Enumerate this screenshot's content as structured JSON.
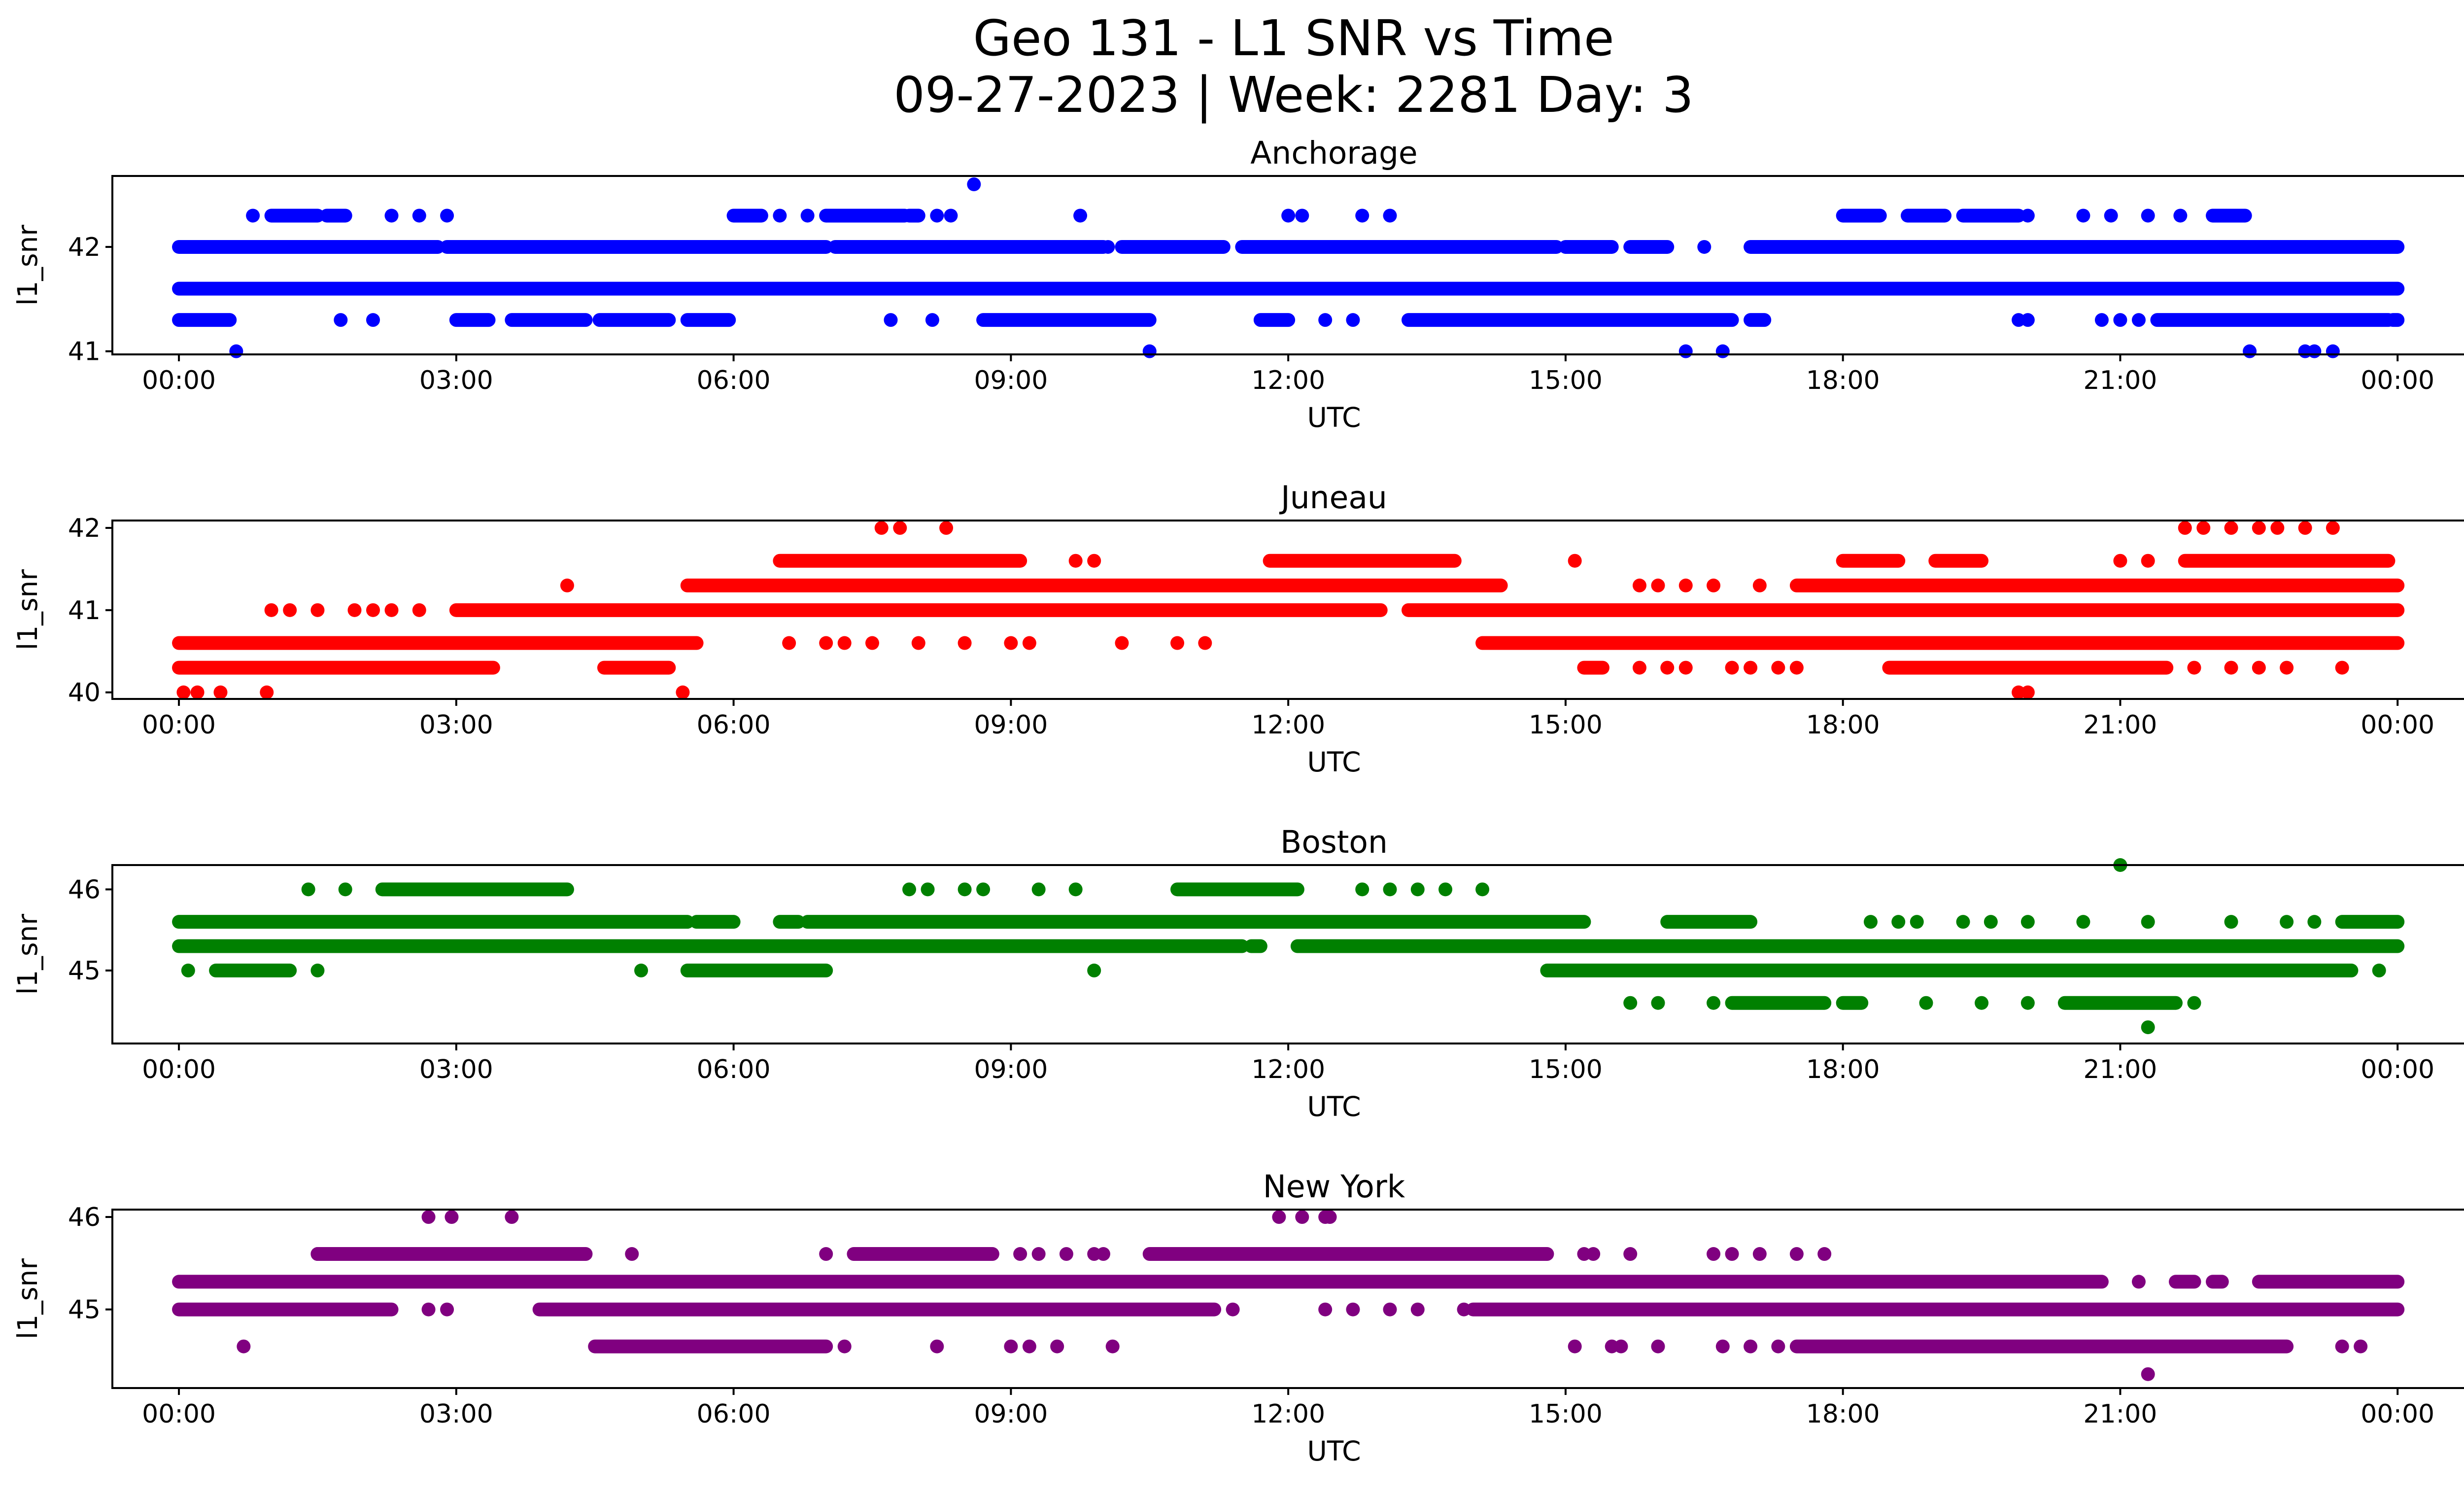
{
  "title": {
    "line1": "Geo 131 - L1 SNR vs Time",
    "line2": "09-27-2023 | Week: 2281 Day: 3"
  },
  "chart_data": [
    {
      "type": "scatter",
      "title": "Anchorage",
      "xlabel": "UTC",
      "ylabel": "l1_snr",
      "color": "#0000ff",
      "xlim": [
        -0.72,
        25.71
      ],
      "ylim": [
        40.97,
        42.68
      ],
      "xticks": [
        "00:00",
        "03:00",
        "06:00",
        "09:00",
        "12:00",
        "15:00",
        "18:00",
        "21:00",
        "00:00"
      ],
      "yticks": [
        41,
        42
      ],
      "bands": [
        {
          "y": 41.6,
          "ranges": [
            [
              0.0,
              24.0
            ]
          ]
        },
        {
          "y": 42.0,
          "ranges": [
            [
              0.0,
              2.8
            ],
            [
              2.9,
              7.0
            ],
            [
              7.1,
              10.0
            ],
            [
              10.2,
              11.3
            ],
            [
              11.5,
              14.9
            ],
            [
              15.0,
              15.5
            ],
            [
              15.7,
              16.1
            ],
            [
              17.0,
              24.0
            ]
          ]
        },
        {
          "y": 41.3,
          "ranges": [
            [
              0.0,
              0.55
            ],
            [
              3.0,
              3.35
            ],
            [
              3.6,
              4.4
            ],
            [
              4.55,
              5.3
            ],
            [
              5.5,
              5.95
            ],
            [
              8.7,
              10.5
            ],
            [
              11.7,
              12.0
            ],
            [
              13.3,
              16.8
            ],
            [
              17.0,
              17.15
            ],
            [
              21.4,
              23.9
            ],
            [
              23.95,
              24.0
            ]
          ]
        },
        {
          "y": 42.3,
          "ranges": [
            [
              1.0,
              1.5
            ],
            [
              1.6,
              1.8
            ],
            [
              6.0,
              6.3
            ],
            [
              7.0,
              7.85
            ],
            [
              7.9,
              8.0
            ],
            [
              18.0,
              18.4
            ],
            [
              18.7,
              19.1
            ],
            [
              19.3,
              19.9
            ],
            [
              22.0,
              22.35
            ]
          ]
        }
      ],
      "points": [
        [
          0.62,
          41.0
        ],
        [
          10.5,
          41.0
        ],
        [
          16.3,
          41.0
        ],
        [
          16.7,
          41.0
        ],
        [
          22.4,
          41.0
        ],
        [
          23.0,
          41.0
        ],
        [
          23.1,
          41.0
        ],
        [
          23.3,
          41.0
        ],
        [
          8.6,
          42.6
        ],
        [
          0.8,
          42.3
        ],
        [
          2.3,
          42.3
        ],
        [
          2.6,
          42.3
        ],
        [
          2.9,
          42.3
        ],
        [
          6.5,
          42.3
        ],
        [
          6.8,
          42.3
        ],
        [
          8.2,
          42.3
        ],
        [
          8.35,
          42.3
        ],
        [
          9.75,
          42.3
        ],
        [
          12.0,
          42.3
        ],
        [
          12.15,
          42.3
        ],
        [
          12.8,
          42.3
        ],
        [
          13.1,
          42.3
        ],
        [
          20.0,
          42.3
        ],
        [
          20.6,
          42.3
        ],
        [
          20.9,
          42.3
        ],
        [
          21.3,
          42.3
        ],
        [
          21.65,
          42.3
        ],
        [
          16.0,
          42.0
        ],
        [
          16.5,
          42.0
        ],
        [
          10.05,
          42.0
        ],
        [
          1.75,
          41.3
        ],
        [
          2.1,
          41.3
        ],
        [
          7.7,
          41.3
        ],
        [
          8.15,
          41.3
        ],
        [
          12.4,
          41.3
        ],
        [
          12.7,
          41.3
        ],
        [
          19.9,
          41.3
        ],
        [
          20.0,
          41.3
        ],
        [
          20.8,
          41.3
        ],
        [
          21.0,
          41.3
        ],
        [
          21.2,
          41.3
        ]
      ]
    },
    {
      "type": "scatter",
      "title": "Juneau",
      "xlabel": "UTC",
      "ylabel": "l1_snr",
      "color": "#ff0000",
      "xlim": [
        -0.72,
        25.71
      ],
      "ylim": [
        39.92,
        42.09
      ],
      "xticks": [
        "00:00",
        "03:00",
        "06:00",
        "09:00",
        "12:00",
        "15:00",
        "18:00",
        "21:00",
        "00:00"
      ],
      "yticks": [
        40,
        41,
        42
      ],
      "bands": [
        {
          "y": 41.0,
          "ranges": [
            [
              3.0,
              13.0
            ],
            [
              13.3,
              24.0
            ]
          ]
        },
        {
          "y": 40.6,
          "ranges": [
            [
              0.0,
              5.6
            ],
            [
              14.1,
              24.0
            ]
          ]
        },
        {
          "y": 40.3,
          "ranges": [
            [
              0.0,
              3.4
            ],
            [
              4.6,
              5.3
            ],
            [
              15.2,
              15.4
            ],
            [
              18.5,
              21.5
            ]
          ]
        },
        {
          "y": 41.3,
          "ranges": [
            [
              5.5,
              14.3
            ],
            [
              17.5,
              24.0
            ]
          ]
        },
        {
          "y": 41.6,
          "ranges": [
            [
              6.5,
              9.1
            ],
            [
              11.8,
              13.8
            ],
            [
              18.0,
              18.6
            ],
            [
              19.0,
              19.5
            ],
            [
              21.7,
              23.9
            ]
          ]
        }
      ],
      "points": [
        [
          0.05,
          40.0
        ],
        [
          0.2,
          40.0
        ],
        [
          0.45,
          40.0
        ],
        [
          0.95,
          40.0
        ],
        [
          5.45,
          40.0
        ],
        [
          19.9,
          40.0
        ],
        [
          20.0,
          40.0
        ],
        [
          7.6,
          42.0
        ],
        [
          7.8,
          42.0
        ],
        [
          8.3,
          42.0
        ],
        [
          21.7,
          42.0
        ],
        [
          21.9,
          42.0
        ],
        [
          22.2,
          42.0
        ],
        [
          22.5,
          42.0
        ],
        [
          22.7,
          42.0
        ],
        [
          23.0,
          42.0
        ],
        [
          23.3,
          42.0
        ],
        [
          4.2,
          41.3
        ],
        [
          15.1,
          41.6
        ],
        [
          17.1,
          41.3
        ],
        [
          1.0,
          41.0
        ],
        [
          1.2,
          41.0
        ],
        [
          1.5,
          41.0
        ],
        [
          1.9,
          41.0
        ],
        [
          2.1,
          41.0
        ],
        [
          2.3,
          41.0
        ],
        [
          2.6,
          41.0
        ],
        [
          6.6,
          40.6
        ],
        [
          7.0,
          40.6
        ],
        [
          7.2,
          40.6
        ],
        [
          7.5,
          40.6
        ],
        [
          8.0,
          40.6
        ],
        [
          8.5,
          40.6
        ],
        [
          9.0,
          40.6
        ],
        [
          9.2,
          40.6
        ],
        [
          10.2,
          40.6
        ],
        [
          10.8,
          40.6
        ],
        [
          11.1,
          40.6
        ],
        [
          9.7,
          41.6
        ],
        [
          9.9,
          41.6
        ],
        [
          15.8,
          41.3
        ],
        [
          16.0,
          41.3
        ],
        [
          16.3,
          41.3
        ],
        [
          16.6,
          41.3
        ],
        [
          15.8,
          40.3
        ],
        [
          16.1,
          40.3
        ],
        [
          16.3,
          40.3
        ],
        [
          16.8,
          40.3
        ],
        [
          17.0,
          40.3
        ],
        [
          17.3,
          40.3
        ],
        [
          17.5,
          40.3
        ],
        [
          21.8,
          40.3
        ],
        [
          22.2,
          40.3
        ],
        [
          22.5,
          40.3
        ],
        [
          22.8,
          40.3
        ],
        [
          23.4,
          40.3
        ],
        [
          21.0,
          41.6
        ],
        [
          21.3,
          41.6
        ]
      ]
    },
    {
      "type": "scatter",
      "title": "Boston",
      "xlabel": "UTC",
      "ylabel": "l1_snr",
      "color": "#008000",
      "xlim": [
        -0.72,
        25.71
      ],
      "ylim": [
        44.1,
        46.3
      ],
      "xticks": [
        "00:00",
        "03:00",
        "06:00",
        "09:00",
        "12:00",
        "15:00",
        "18:00",
        "21:00",
        "00:00"
      ],
      "yticks": [
        45,
        46
      ],
      "bands": [
        {
          "y": 45.3,
          "ranges": [
            [
              0.0,
              11.5
            ],
            [
              11.6,
              11.7
            ],
            [
              12.1,
              24.0
            ]
          ]
        },
        {
          "y": 45.6,
          "ranges": [
            [
              0.0,
              5.5
            ],
            [
              5.6,
              6.0
            ],
            [
              6.5,
              6.7
            ],
            [
              6.8,
              15.2
            ],
            [
              16.1,
              17.0
            ],
            [
              23.4,
              24.0
            ]
          ]
        },
        {
          "y": 45.0,
          "ranges": [
            [
              0.4,
              1.2
            ],
            [
              5.5,
              7.0
            ],
            [
              14.8,
              23.5
            ]
          ]
        },
        {
          "y": 46.0,
          "ranges": [
            [
              2.2,
              4.2
            ],
            [
              10.8,
              12.1
            ]
          ]
        },
        {
          "y": 44.6,
          "ranges": [
            [
              16.8,
              17.8
            ],
            [
              18.0,
              18.2
            ],
            [
              20.4,
              21.6
            ]
          ]
        }
      ],
      "points": [
        [
          0.1,
          45.0
        ],
        [
          1.5,
          45.0
        ],
        [
          5.0,
          45.0
        ],
        [
          9.9,
          45.0
        ],
        [
          23.8,
          45.0
        ],
        [
          1.4,
          46.0
        ],
        [
          1.8,
          46.0
        ],
        [
          7.9,
          46.0
        ],
        [
          8.1,
          46.0
        ],
        [
          8.5,
          46.0
        ],
        [
          8.7,
          46.0
        ],
        [
          9.3,
          46.0
        ],
        [
          9.7,
          46.0
        ],
        [
          12.8,
          46.0
        ],
        [
          13.1,
          46.0
        ],
        [
          13.4,
          46.0
        ],
        [
          13.7,
          46.0
        ],
        [
          14.1,
          46.0
        ],
        [
          21.0,
          46.3
        ],
        [
          21.3,
          44.3
        ],
        [
          15.7,
          44.6
        ],
        [
          16.0,
          44.6
        ],
        [
          16.6,
          44.6
        ],
        [
          18.9,
          44.6
        ],
        [
          19.5,
          44.6
        ],
        [
          20.0,
          44.6
        ],
        [
          21.8,
          44.6
        ],
        [
          18.3,
          45.6
        ],
        [
          18.6,
          45.6
        ],
        [
          18.8,
          45.6
        ],
        [
          19.3,
          45.6
        ],
        [
          19.6,
          45.6
        ],
        [
          20.0,
          45.6
        ],
        [
          20.6,
          45.6
        ],
        [
          21.3,
          45.6
        ],
        [
          22.2,
          45.6
        ],
        [
          22.8,
          45.6
        ],
        [
          23.1,
          45.6
        ]
      ]
    },
    {
      "type": "scatter",
      "title": "New York",
      "xlabel": "UTC",
      "ylabel": "l1_snr",
      "color": "#800080",
      "xlim": [
        -0.72,
        25.71
      ],
      "ylim": [
        44.15,
        46.08
      ],
      "xticks": [
        "00:00",
        "03:00",
        "06:00",
        "09:00",
        "12:00",
        "15:00",
        "18:00",
        "21:00",
        "00:00"
      ],
      "yticks": [
        45,
        46
      ],
      "bands": [
        {
          "y": 45.3,
          "ranges": [
            [
              0.0,
              20.8
            ],
            [
              21.6,
              21.8
            ],
            [
              22.0,
              22.1
            ],
            [
              22.5,
              24.0
            ]
          ]
        },
        {
          "y": 45.0,
          "ranges": [
            [
              0.0,
              2.3
            ],
            [
              3.9,
              11.2
            ],
            [
              14.0,
              24.0
            ]
          ]
        },
        {
          "y": 45.6,
          "ranges": [
            [
              1.5,
              4.4
            ],
            [
              7.3,
              8.8
            ],
            [
              10.5,
              14.8
            ]
          ]
        },
        {
          "y": 44.6,
          "ranges": [
            [
              4.5,
              7.0
            ],
            [
              17.5,
              22.8
            ]
          ]
        }
      ],
      "points": [
        [
          2.7,
          46.0
        ],
        [
          2.95,
          46.0
        ],
        [
          3.6,
          46.0
        ],
        [
          11.9,
          46.0
        ],
        [
          12.15,
          46.0
        ],
        [
          12.4,
          46.0
        ],
        [
          12.45,
          46.0
        ],
        [
          21.3,
          44.3
        ],
        [
          0.7,
          44.6
        ],
        [
          7.2,
          44.6
        ],
        [
          8.2,
          44.6
        ],
        [
          9.0,
          44.6
        ],
        [
          9.2,
          44.6
        ],
        [
          9.5,
          44.6
        ],
        [
          10.1,
          44.6
        ],
        [
          15.1,
          44.6
        ],
        [
          15.5,
          44.6
        ],
        [
          15.6,
          44.6
        ],
        [
          16.0,
          44.6
        ],
        [
          16.7,
          44.6
        ],
        [
          17.0,
          44.6
        ],
        [
          17.3,
          44.6
        ],
        [
          23.4,
          44.6
        ],
        [
          23.6,
          44.6
        ],
        [
          1.5,
          45.6
        ],
        [
          4.9,
          45.6
        ],
        [
          7.0,
          45.6
        ],
        [
          9.1,
          45.6
        ],
        [
          9.3,
          45.6
        ],
        [
          9.6,
          45.6
        ],
        [
          9.9,
          45.6
        ],
        [
          10.0,
          45.6
        ],
        [
          15.2,
          45.6
        ],
        [
          15.3,
          45.6
        ],
        [
          15.7,
          45.6
        ],
        [
          16.6,
          45.6
        ],
        [
          16.8,
          45.6
        ],
        [
          17.1,
          45.6
        ],
        [
          17.5,
          45.6
        ],
        [
          17.8,
          45.6
        ],
        [
          2.7,
          45.0
        ],
        [
          2.9,
          45.0
        ],
        [
          11.4,
          45.0
        ],
        [
          12.4,
          45.0
        ],
        [
          12.7,
          45.0
        ],
        [
          13.1,
          45.0
        ],
        [
          13.4,
          45.0
        ],
        [
          13.9,
          45.0
        ],
        [
          21.2,
          45.3
        ]
      ]
    }
  ]
}
